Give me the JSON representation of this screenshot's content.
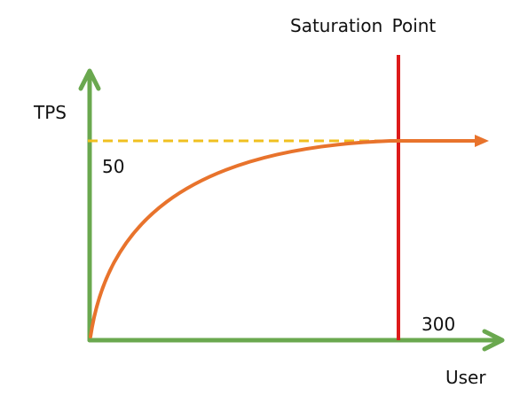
{
  "chart_data": {
    "type": "line",
    "labels": {
      "y_axis": "TPS",
      "x_axis": "User",
      "y_value": "50",
      "x_value": "300",
      "annotation": "Saturation Point"
    },
    "x_saturation": 300,
    "y_saturation": 50,
    "curve": "logarithmic rise that levels off near the saturation value"
  },
  "colors": {
    "axes": "#6aa84f",
    "curve": "#e8732c",
    "saturation_line": "#dd1a1a",
    "saturation_level": "#f0c020",
    "text": "#111111"
  }
}
